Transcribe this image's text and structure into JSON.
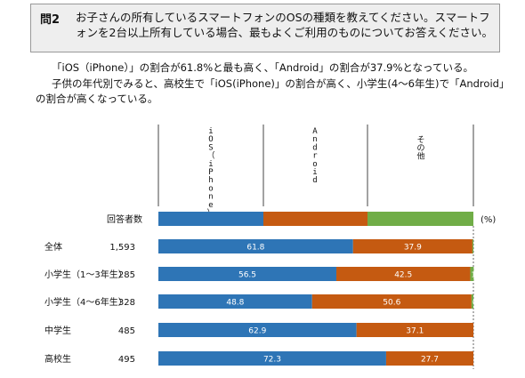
{
  "question": {
    "number": "問2",
    "text": "お子さんの所有しているスマートフォンのOSの種類を教えてください。スマートフォンを2台以上所有している場合、最もよくご利用のものについてお答えください。"
  },
  "summary": {
    "line1": "「iOS（iPhone）」の割合が61.8%と最も高く、「Android」の割合が37.9%となっている。",
    "line2": "子供の年代別でみると、高校生で「iOS(iPhone)」の割合が高く、小学生(4～6年生)で「Android」の割合が高くなっている。"
  },
  "chart_data": {
    "type": "bar",
    "stacked": true,
    "orientation": "horizontal",
    "unit": "(%)",
    "count_header": "回答者数",
    "series": [
      {
        "name": "iOS（iPhone）",
        "color": "#2e75b6"
      },
      {
        "name": "Android",
        "color": "#c55a11"
      },
      {
        "name": "その他",
        "color": "#70ad47"
      }
    ],
    "rows": [
      {
        "label": "全体",
        "count": "1,593",
        "values": [
          61.8,
          37.9,
          0.3
        ]
      },
      {
        "label": "小学生（1～3年生）",
        "count": "285",
        "values": [
          56.5,
          42.5,
          1.1
        ]
      },
      {
        "label": "小学生（4～6年生）",
        "count": "328",
        "values": [
          48.8,
          50.6,
          0.6
        ]
      },
      {
        "label": "中学生",
        "count": "485",
        "values": [
          62.9,
          37.1,
          0
        ]
      },
      {
        "label": "高校生",
        "count": "495",
        "values": [
          72.3,
          27.7,
          0
        ]
      }
    ]
  }
}
